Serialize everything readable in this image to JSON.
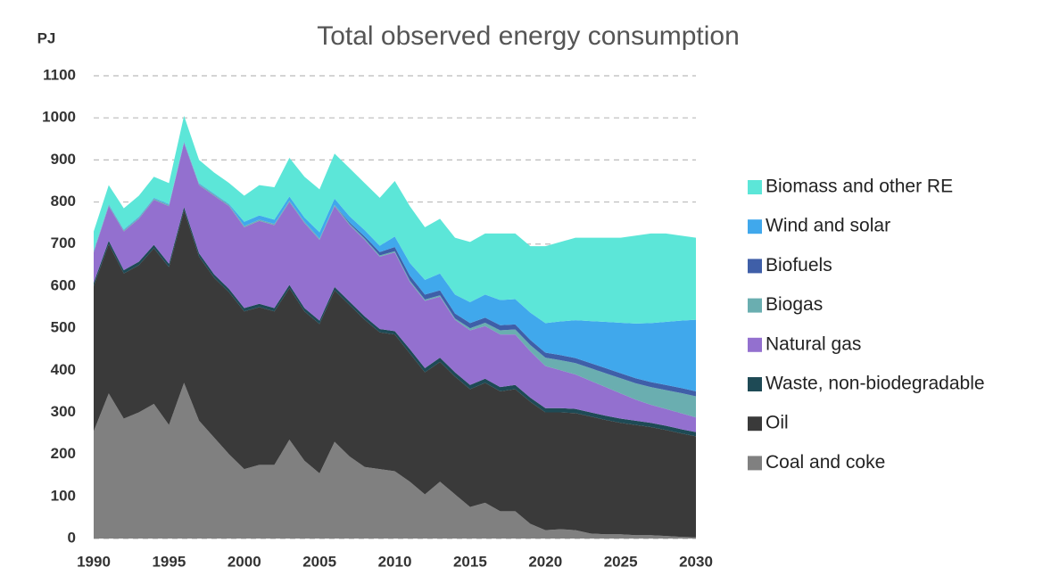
{
  "chart_data": {
    "type": "stacked-area",
    "title": "Total observed energy consumption",
    "y_label": "PJ",
    "x": [
      1990,
      1991,
      1992,
      1993,
      1994,
      1995,
      1996,
      1997,
      1998,
      1999,
      2000,
      2001,
      2002,
      2003,
      2004,
      2005,
      2006,
      2007,
      2008,
      2009,
      2010,
      2011,
      2012,
      2013,
      2014,
      2015,
      2016,
      2017,
      2018,
      2019,
      2020,
      2021,
      2022,
      2023,
      2024,
      2025,
      2026,
      2027,
      2028,
      2029,
      2030
    ],
    "xlim": [
      1990,
      2030
    ],
    "xticks": [
      1990,
      1995,
      2000,
      2005,
      2010,
      2015,
      2020,
      2025,
      2030
    ],
    "ylim": [
      0,
      1100
    ],
    "yticks": [
      0,
      100,
      200,
      300,
      400,
      500,
      600,
      700,
      800,
      900,
      1000,
      1100
    ],
    "grid": true,
    "legend": "right",
    "series": [
      {
        "name": "Coal and coke",
        "color": "#808080",
        "values": [
          255,
          345,
          285,
          300,
          320,
          270,
          370,
          280,
          240,
          200,
          165,
          175,
          175,
          235,
          185,
          155,
          230,
          195,
          170,
          165,
          160,
          135,
          105,
          135,
          105,
          75,
          85,
          65,
          65,
          35,
          20,
          22,
          20,
          12,
          10,
          10,
          8,
          8,
          6,
          4,
          3
        ]
      },
      {
        "name": "Oil",
        "color": "#3a3a3a",
        "values": [
          345,
          355,
          345,
          350,
          370,
          375,
          410,
          390,
          380,
          385,
          375,
          375,
          365,
          360,
          355,
          355,
          360,
          360,
          350,
          325,
          325,
          305,
          290,
          285,
          280,
          280,
          285,
          285,
          290,
          290,
          280,
          278,
          278,
          278,
          272,
          265,
          262,
          257,
          252,
          246,
          240
        ]
      },
      {
        "name": "Waste, non-biodegradable",
        "color": "#1e4a55",
        "values": [
          8,
          8,
          8,
          8,
          8,
          8,
          8,
          8,
          8,
          8,
          8,
          8,
          8,
          8,
          8,
          8,
          8,
          8,
          8,
          8,
          8,
          10,
          10,
          10,
          10,
          10,
          10,
          10,
          10,
          10,
          10,
          10,
          10,
          10,
          10,
          10,
          10,
          10,
          10,
          10,
          10
        ]
      },
      {
        "name": "Natural gas",
        "color": "#9370cf",
        "values": [
          72,
          82,
          92,
          102,
          107,
          137,
          152,
          162,
          187,
          197,
          192,
          197,
          197,
          197,
          202,
          192,
          192,
          182,
          182,
          172,
          187,
          160,
          160,
          145,
          125,
          130,
          125,
          125,
          120,
          110,
          100,
          90,
          82,
          75,
          68,
          60,
          50,
          43,
          40,
          38,
          35
        ]
      },
      {
        "name": "Biogas",
        "color": "#6aaeb0",
        "values": [
          3,
          3,
          3,
          3,
          3,
          3,
          3,
          3,
          3,
          3,
          3,
          3,
          3,
          3,
          3,
          3,
          3,
          3,
          3,
          3,
          3,
          3,
          3,
          3,
          3,
          5,
          8,
          10,
          12,
          15,
          20,
          24,
          27,
          30,
          33,
          36,
          39,
          42,
          45,
          48,
          50
        ]
      },
      {
        "name": "Biofuels",
        "color": "#3f5fa8",
        "values": [
          0,
          0,
          0,
          0,
          0,
          0,
          0,
          0,
          0,
          0,
          0,
          0,
          0,
          0,
          0,
          0,
          0,
          3,
          5,
          8,
          10,
          12,
          12,
          12,
          12,
          12,
          12,
          12,
          12,
          12,
          12,
          12,
          12,
          12,
          12,
          12,
          12,
          12,
          12,
          12,
          12
        ]
      },
      {
        "name": "Wind and solar",
        "color": "#40a8ec",
        "values": [
          2,
          2,
          2,
          2,
          2,
          2,
          2,
          2,
          2,
          2,
          10,
          10,
          10,
          10,
          10,
          15,
          15,
          15,
          15,
          15,
          25,
          30,
          35,
          40,
          45,
          50,
          55,
          60,
          60,
          65,
          70,
          80,
          90,
          100,
          110,
          120,
          130,
          140,
          150,
          160,
          170
        ]
      },
      {
        "name": "Biomass and other RE",
        "color": "#5ce6d8",
        "values": [
          45,
          45,
          50,
          50,
          50,
          50,
          60,
          55,
          50,
          50,
          62,
          72,
          77,
          92,
          97,
          102,
          107,
          114,
          112,
          114,
          132,
          135,
          125,
          130,
          135,
          143,
          145,
          158,
          156,
          158,
          183,
          189,
          196,
          198,
          200,
          202,
          209,
          213,
          210,
          202,
          195
        ]
      }
    ]
  }
}
